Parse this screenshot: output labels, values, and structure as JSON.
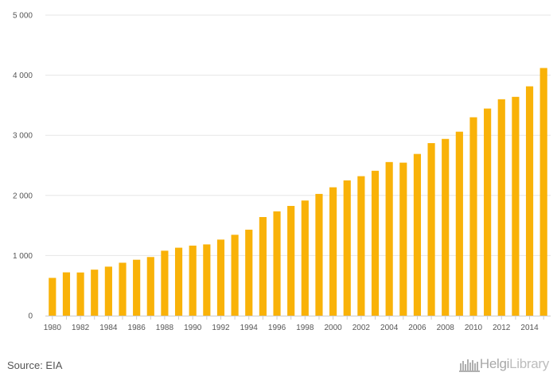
{
  "chart_data": {
    "type": "bar",
    "title": "",
    "xlabel": "",
    "ylabel": "",
    "categories": [
      "1980",
      "1981",
      "1982",
      "1983",
      "1984",
      "1985",
      "1986",
      "1987",
      "1988",
      "1989",
      "1990",
      "1991",
      "1992",
      "1993",
      "1994",
      "1995",
      "1996",
      "1997",
      "1998",
      "1999",
      "2000",
      "2001",
      "2002",
      "2003",
      "2004",
      "2005",
      "2006",
      "2007",
      "2008",
      "2009",
      "2010",
      "2011",
      "2012",
      "2013",
      "2014",
      "2015"
    ],
    "x_tick_labels": [
      "1980",
      "1982",
      "1984",
      "1986",
      "1988",
      "1990",
      "1992",
      "1994",
      "1996",
      "1998",
      "2000",
      "2002",
      "2004",
      "2006",
      "2008",
      "2010",
      "2012",
      "2014"
    ],
    "values": [
      628,
      720,
      718,
      765,
      815,
      880,
      930,
      975,
      1080,
      1130,
      1165,
      1185,
      1265,
      1345,
      1430,
      1640,
      1735,
      1825,
      1915,
      2025,
      2135,
      2250,
      2320,
      2410,
      2555,
      2545,
      2690,
      2870,
      2940,
      3060,
      3300,
      3445,
      3600,
      3640,
      3815,
      4120
    ],
    "ylim": [
      0,
      5000
    ],
    "y_ticks": [
      0,
      1000,
      2000,
      3000,
      4000,
      5000
    ],
    "y_tick_labels": [
      "0",
      "1 000",
      "2 000",
      "3 000",
      "4 000",
      "5 000"
    ],
    "grid": true,
    "bar_color": "#F9B208",
    "grid_color": "#e6e6e6"
  },
  "footer": {
    "source": "Source: EIA",
    "brand_a": "Helgi",
    "brand_b": "Library"
  }
}
